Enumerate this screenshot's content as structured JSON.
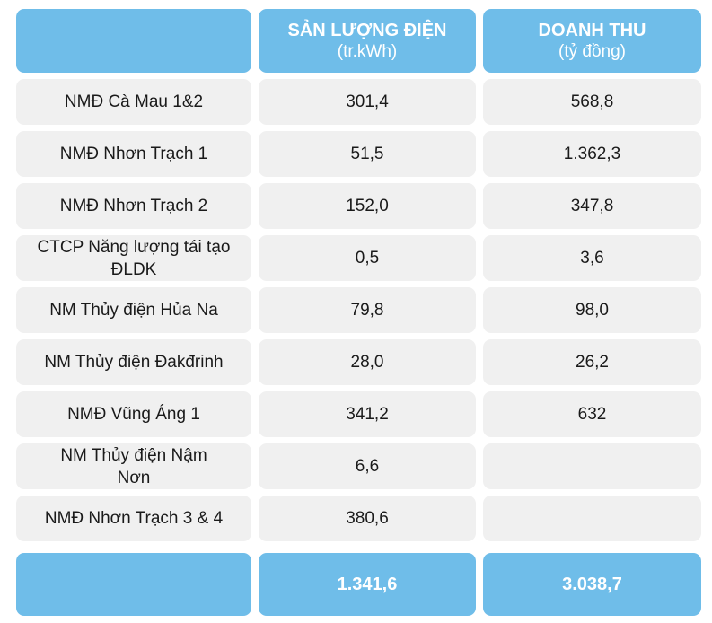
{
  "header": {
    "col1_title": "SẢN LƯỢNG ĐIỆN",
    "col1_unit": "(tr.kWh)",
    "col2_title": "DOANH THU",
    "col2_unit": "(tỷ đồng)"
  },
  "rows": [
    {
      "name": "NMĐ Cà Mau 1&2",
      "output": "301,4",
      "revenue": "568,8"
    },
    {
      "name": "NMĐ Nhơn Trạch 1",
      "output": "51,5",
      "revenue": "1.362,3"
    },
    {
      "name": "NMĐ Nhơn Trạch 2",
      "output": "152,0",
      "revenue": "347,8"
    },
    {
      "name": "CTCP Năng lượng tái tạo ĐLDK",
      "output": "0,5",
      "revenue": "3,6"
    },
    {
      "name": "NM Thủy điện Hủa Na",
      "output": "79,8",
      "revenue": "98,0"
    },
    {
      "name": "NM Thủy điện Đakđrinh",
      "output": "28,0",
      "revenue": "26,2"
    },
    {
      "name": "NMĐ Vũng Áng 1",
      "output": "341,2",
      "revenue": "632"
    },
    {
      "name": "NM Thủy điện Nậm Nơn",
      "output": "6,6",
      "revenue": ""
    },
    {
      "name": "NMĐ Nhơn Trạch 3 & 4",
      "output": "380,6",
      "revenue": ""
    }
  ],
  "total": {
    "output": "1.341,6",
    "revenue": "3.038,7"
  }
}
